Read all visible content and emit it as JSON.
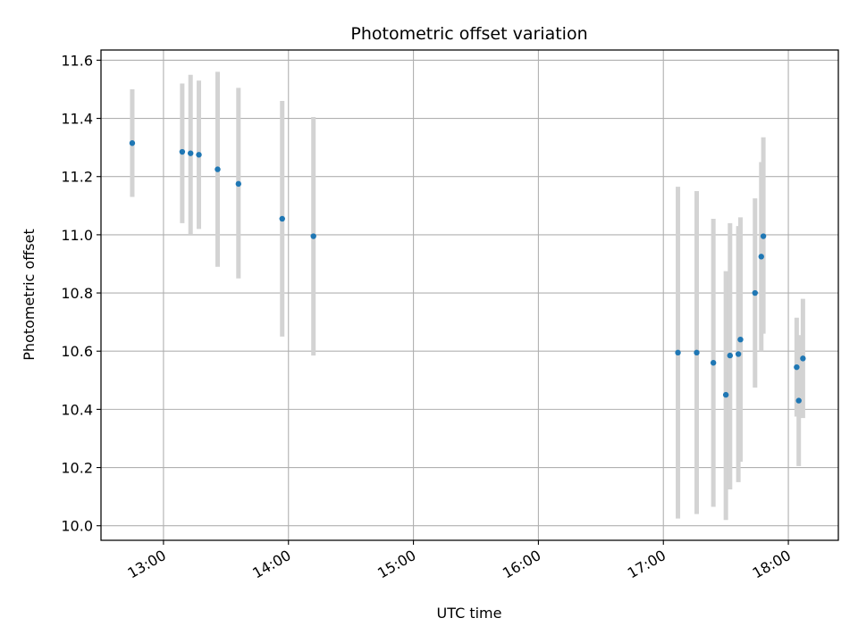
{
  "chart_data": {
    "type": "scatter",
    "title": "Photometric offset variation",
    "xlabel": "UTC time",
    "ylabel": "Photometric offset",
    "x_ticks": [
      "13:00",
      "14:00",
      "15:00",
      "16:00",
      "17:00",
      "18:00"
    ],
    "y_ticks": [
      "10.0",
      "10.2",
      "10.4",
      "10.6",
      "10.8",
      "11.0",
      "11.2",
      "11.4",
      "11.6"
    ],
    "xlim": [
      "12:30",
      "18:24"
    ],
    "ylim": [
      9.95,
      11.635
    ],
    "grid": true,
    "marker_color": "#1f77b4",
    "errorbar_color": "#d3d3d3",
    "points": [
      {
        "time": "12:45",
        "y": 11.315,
        "lo": 11.13,
        "hi": 11.5
      },
      {
        "time": "13:09",
        "y": 11.285,
        "lo": 11.04,
        "hi": 11.52
      },
      {
        "time": "13:13",
        "y": 11.28,
        "lo": 11.0,
        "hi": 11.55
      },
      {
        "time": "13:17",
        "y": 11.275,
        "lo": 11.02,
        "hi": 11.53
      },
      {
        "time": "13:26",
        "y": 11.225,
        "lo": 10.89,
        "hi": 11.56
      },
      {
        "time": "13:36",
        "y": 11.175,
        "lo": 10.85,
        "hi": 11.505
      },
      {
        "time": "13:57",
        "y": 11.055,
        "lo": 10.65,
        "hi": 11.46
      },
      {
        "time": "14:12",
        "y": 10.995,
        "lo": 10.585,
        "hi": 11.405
      },
      {
        "time": "17:07",
        "y": 10.595,
        "lo": 10.025,
        "hi": 11.165
      },
      {
        "time": "17:16",
        "y": 10.595,
        "lo": 10.04,
        "hi": 11.15
      },
      {
        "time": "17:24",
        "y": 10.56,
        "lo": 10.065,
        "hi": 11.055
      },
      {
        "time": "17:30",
        "y": 10.45,
        "lo": 10.02,
        "hi": 10.875
      },
      {
        "time": "17:32",
        "y": 10.585,
        "lo": 10.125,
        "hi": 11.04
      },
      {
        "time": "17:36",
        "y": 10.59,
        "lo": 10.15,
        "hi": 11.03
      },
      {
        "time": "17:37",
        "y": 10.64,
        "lo": 10.22,
        "hi": 11.06
      },
      {
        "time": "17:44",
        "y": 10.8,
        "lo": 10.475,
        "hi": 11.125
      },
      {
        "time": "17:47",
        "y": 10.925,
        "lo": 10.6,
        "hi": 11.25
      },
      {
        "time": "17:48",
        "y": 10.995,
        "lo": 10.66,
        "hi": 11.335
      },
      {
        "time": "18:04",
        "y": 10.545,
        "lo": 10.375,
        "hi": 10.715
      },
      {
        "time": "18:05",
        "y": 10.43,
        "lo": 10.205,
        "hi": 10.655
      },
      {
        "time": "18:07",
        "y": 10.575,
        "lo": 10.37,
        "hi": 10.78
      }
    ]
  }
}
